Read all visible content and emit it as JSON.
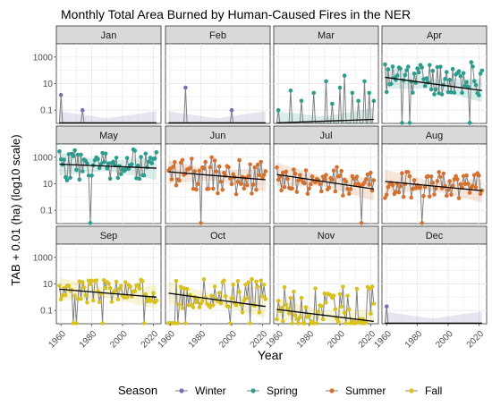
{
  "chart_data": {
    "type": "line",
    "title": "Monthly Total Area Burned by Human-Caused Fires in the NER",
    "xlabel": "Year",
    "ylabel": "TAB + 0.01 (ha) (log10 scale)",
    "x_ticks": [
      1960,
      1980,
      2000,
      2020
    ],
    "y_ticks": [
      {
        "value": 0.1,
        "label": "0.1"
      },
      {
        "value": 10,
        "label": "10"
      },
      {
        "value": 1000,
        "label": "1000"
      }
    ],
    "ylim": [
      0.01,
      10000
    ],
    "xlim": [
      1957,
      2025
    ],
    "log_scale_y": true,
    "grid": true,
    "legend": {
      "title": "Season",
      "position": "bottom",
      "items": [
        {
          "name": "Winter",
          "color": "#7b6fae"
        },
        {
          "name": "Spring",
          "color": "#2a9d8f"
        },
        {
          "name": "Summer",
          "color": "#d4712f"
        },
        {
          "name": "Fall",
          "color": "#d9c21e"
        }
      ]
    },
    "panels": [
      {
        "label": "Jan",
        "season": "Winter",
        "trend": [
          0.011,
          0.011
        ],
        "points": [
          [
            1960,
            1.4
          ],
          [
            1974,
            0.1
          ]
        ],
        "base": 0.011
      },
      {
        "label": "Feb",
        "season": "Winter",
        "trend": [
          0.011,
          0.011
        ],
        "points": [
          [
            1970,
            5.0
          ],
          [
            2000,
            0.1
          ]
        ],
        "base": 0.011
      },
      {
        "label": "Mar",
        "season": "Spring",
        "trend": [
          0.011,
          0.02
        ],
        "points": [
          [
            1960,
            0.1
          ],
          [
            1968,
            3.0
          ],
          [
            1975,
            0.5
          ],
          [
            1983,
            2.0
          ],
          [
            1991,
            15
          ],
          [
            1995,
            0.3
          ],
          [
            2000,
            5.0
          ],
          [
            2003,
            40
          ],
          [
            2008,
            2.0
          ],
          [
            2012,
            0.5
          ],
          [
            2016,
            15
          ],
          [
            2019,
            2.0
          ],
          [
            2022,
            0.5
          ]
        ],
        "base": 0.011
      },
      {
        "label": "Apr",
        "season": "Spring",
        "trend": [
          30,
          3
        ],
        "points": "spring_apr",
        "base": 0.011
      },
      {
        "label": "May",
        "season": "Spring",
        "trend": [
          300,
          150
        ],
        "points": "spring_may",
        "base": 0.011
      },
      {
        "label": "Jun",
        "season": "Summer",
        "trend": [
          80,
          20
        ],
        "points": "summer_jun",
        "base": 0.011
      },
      {
        "label": "Jul",
        "season": "Summer",
        "trend": [
          50,
          4
        ],
        "points": "summer_jul",
        "base": 0.011
      },
      {
        "label": "Aug",
        "season": "Summer",
        "trend": [
          15,
          3
        ],
        "points": "summer_aug",
        "base": 0.011
      },
      {
        "label": "Sep",
        "season": "Fall",
        "trend": [
          4,
          1
        ],
        "points": "fall_sep",
        "base": 0.011
      },
      {
        "label": "Oct",
        "season": "Fall",
        "trend": [
          2,
          0.2
        ],
        "points": "fall_oct",
        "base": 0.011
      },
      {
        "label": "Nov",
        "season": "Fall",
        "trend": [
          0.12,
          0.015
        ],
        "points": "fall_nov",
        "base": 0.011
      },
      {
        "label": "Dec",
        "season": "Winter",
        "trend": [
          0.011,
          0.011
        ],
        "points": [
          [
            1960,
            0.2
          ]
        ],
        "base": 0.011
      }
    ]
  }
}
